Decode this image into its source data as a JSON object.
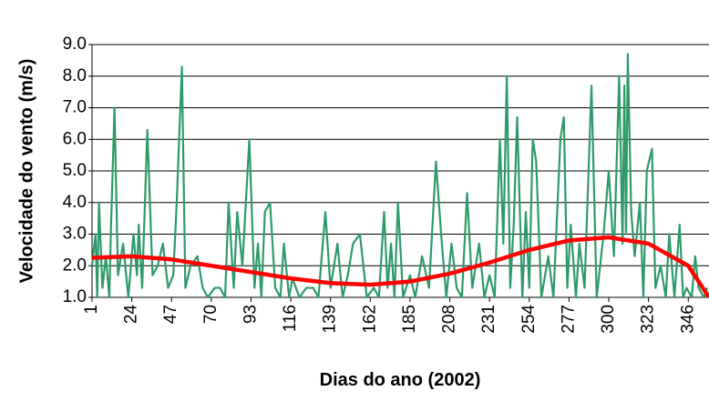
{
  "chart_data": {
    "type": "line",
    "x_label": "Dias do ano (2002)",
    "y_label": "Velocidade do vento (m/s)",
    "xlim": [
      1,
      358
    ],
    "xticks": [
      1,
      24,
      47,
      70,
      93,
      116,
      139,
      162,
      185,
      208,
      231,
      254,
      277,
      300,
      323,
      346
    ],
    "ylim": [
      1,
      9
    ],
    "yticks": [
      {
        "value": 1,
        "label": "1.0"
      },
      {
        "value": 2,
        "label": "2.0"
      },
      {
        "value": 3,
        "label": "3.0"
      },
      {
        "value": 4,
        "label": "4.0"
      },
      {
        "value": 5,
        "label": "5.0"
      },
      {
        "value": 6,
        "label": "6.0"
      },
      {
        "value": 7,
        "label": "7.0"
      },
      {
        "value": 8,
        "label": "8.0"
      },
      {
        "value": 9,
        "label": "9.0"
      }
    ],
    "grid": true,
    "series": [
      {
        "color": "#2e9a6a",
        "width": 2.2,
        "x": [
          1,
          3,
          4,
          5,
          7,
          9,
          11,
          12,
          14,
          16,
          19,
          22,
          25,
          27,
          28,
          30,
          33,
          36,
          39,
          42,
          45,
          48,
          50,
          53,
          55,
          58,
          62,
          65,
          68,
          72,
          75,
          78,
          80,
          83,
          85,
          88,
          92,
          95,
          97,
          99,
          101,
          104,
          107,
          110,
          112,
          115,
          117,
          121,
          125,
          129,
          132,
          136,
          139,
          143,
          146,
          149,
          152,
          156,
          160,
          164,
          167,
          170,
          172,
          174,
          176,
          178,
          181,
          185,
          188,
          192,
          196,
          200,
          203,
          206,
          209,
          212,
          215,
          218,
          221,
          225,
          228,
          231,
          234,
          237,
          239,
          241,
          243,
          245,
          247,
          250,
          252,
          254,
          256,
          258,
          261,
          265,
          268,
          272,
          274,
          276,
          278,
          281,
          283,
          286,
          290,
          293,
          297,
          300,
          303,
          306,
          308,
          309,
          310,
          311,
          313,
          315,
          318,
          320,
          322,
          325,
          327,
          330,
          333,
          335,
          338,
          341,
          343,
          345,
          348,
          350,
          352,
          355,
          357
        ],
        "values": [
          2.0,
          3.0,
          1.0,
          4.0,
          1.3,
          2.3,
          1.0,
          3.3,
          7.0,
          1.7,
          2.7,
          1.0,
          3.0,
          1.7,
          3.3,
          1.3,
          6.3,
          1.7,
          2.0,
          2.7,
          1.3,
          1.7,
          4.0,
          8.3,
          1.3,
          2.0,
          2.3,
          1.3,
          1.0,
          1.3,
          1.3,
          1.0,
          4.0,
          1.3,
          3.7,
          2.0,
          6.0,
          1.3,
          2.7,
          1.0,
          3.7,
          4.0,
          1.3,
          1.0,
          2.7,
          1.0,
          1.6,
          1.0,
          1.3,
          1.3,
          1.0,
          3.7,
          1.3,
          2.7,
          1.0,
          1.7,
          2.7,
          3.0,
          1.0,
          1.3,
          1.0,
          3.7,
          1.3,
          2.7,
          1.0,
          4.0,
          1.0,
          1.7,
          1.0,
          2.3,
          1.3,
          5.3,
          3.0,
          1.0,
          2.7,
          1.3,
          1.0,
          4.3,
          1.3,
          2.7,
          1.0,
          1.7,
          1.0,
          6.0,
          2.7,
          8.0,
          1.3,
          3.3,
          6.7,
          1.0,
          3.7,
          1.3,
          6.0,
          5.3,
          1.0,
          2.3,
          1.0,
          6.0,
          6.7,
          1.3,
          3.3,
          1.0,
          2.7,
          1.3,
          7.7,
          1.0,
          3.0,
          5.0,
          2.3,
          8.0,
          2.7,
          7.7,
          3.0,
          8.7,
          3.7,
          2.3,
          4.0,
          1.0,
          5.0,
          5.7,
          1.3,
          2.0,
          1.0,
          3.0,
          1.0,
          3.3,
          1.0,
          1.3,
          1.0,
          2.3,
          1.3,
          1.0,
          1.3
        ]
      },
      {
        "color": "#ff0000",
        "width": 4.5,
        "x": [
          1,
          24,
          47,
          70,
          93,
          116,
          139,
          162,
          185,
          208,
          231,
          254,
          277,
          300,
          323,
          346,
          358
        ],
        "values": [
          2.25,
          2.3,
          2.2,
          2.0,
          1.8,
          1.6,
          1.45,
          1.4,
          1.5,
          1.75,
          2.1,
          2.5,
          2.8,
          2.9,
          2.7,
          2.0,
          1.0
        ]
      }
    ]
  }
}
